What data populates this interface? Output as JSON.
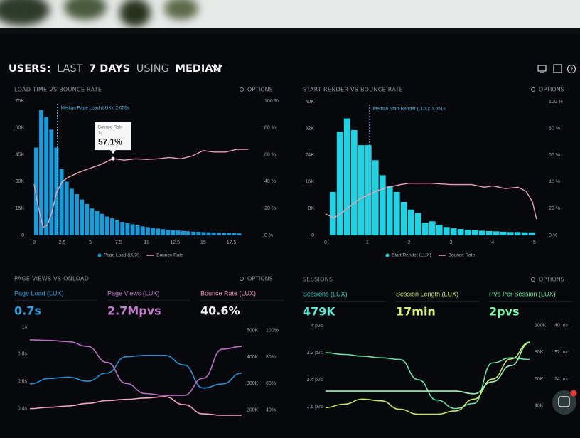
{
  "header": {
    "title": [
      {
        "text": "USERS:",
        "weight": "bold"
      },
      {
        "text": "LAST",
        "weight": "light"
      },
      {
        "text": "7 DAYS",
        "weight": "bold"
      },
      {
        "text": "USING",
        "weight": "light"
      },
      {
        "text": "MEDIAN",
        "weight": "bold"
      }
    ]
  },
  "load_chart": {
    "title": "LOAD TIME VS BOUNCE RATE",
    "options": "OPTIONS",
    "xlim": [
      -0.5,
      19.8
    ],
    "xticks": [
      0,
      2.5,
      5,
      7.5,
      10,
      12.5,
      15,
      17.5
    ],
    "ylim": [
      0,
      75
    ],
    "yticks": [
      0,
      {
        "value": 15,
        "label": "15K"
      },
      {
        "value": 30,
        "label": "30K"
      },
      {
        "value": 45,
        "label": "45K"
      },
      {
        "value": 60,
        "label": "60K"
      },
      {
        "value": 75,
        "label": "75K"
      }
    ],
    "y2lim": [
      0,
      100
    ],
    "y2ticks": [
      {
        "value": 0,
        "label": "0 %"
      },
      {
        "value": 20,
        "label": "20 %"
      },
      {
        "value": 40,
        "label": "40 %"
      },
      {
        "value": 60,
        "label": "60 %"
      },
      {
        "value": 80,
        "label": "80 %"
      },
      {
        "value": 100,
        "label": "100 %"
      }
    ],
    "bars": {
      "name": "Page Load (LUX)",
      "color": "#1b9ad8",
      "bins": [
        0,
        0.45,
        0.9,
        1.35,
        1.8,
        2.25,
        2.7,
        3.15,
        3.6,
        4.05,
        4.5,
        4.95,
        5.4,
        5.85,
        6.3,
        6.75,
        7.2,
        7.65,
        8.1,
        8.55,
        9,
        9.45,
        9.9,
        10.35,
        10.8,
        11.25,
        11.7,
        12.15,
        12.6,
        13.05,
        13.5,
        13.95,
        14.4,
        14.85,
        15.3,
        15.75,
        16.2,
        16.65,
        17.1,
        17.55,
        18,
        18.45
      ],
      "values": [
        49,
        70,
        66,
        59,
        49,
        37,
        30,
        26,
        23,
        20,
        17.5,
        15,
        13.5,
        12,
        10.5,
        9.5,
        8.5,
        7.5,
        6.8,
        6.2,
        5.6,
        5,
        4.6,
        4.2,
        3.8,
        3.5,
        3.2,
        2.9,
        2.7,
        2.5,
        2.3,
        2.1,
        2,
        1.8,
        1.7,
        1.6,
        1.5,
        1.4,
        1.3,
        1.2,
        1.1
      ]
    },
    "line": {
      "name": "Bounce Rate",
      "color": "#e8a2b4",
      "axis": "y2",
      "x": [
        0,
        0.4,
        0.8,
        1.2,
        1.6,
        2,
        2.5,
        3,
        4,
        5,
        6,
        7,
        8,
        9,
        10,
        11,
        12,
        13,
        14,
        15,
        16,
        17,
        18,
        19
      ],
      "values": [
        38,
        20,
        6,
        8,
        18,
        32,
        40,
        43,
        47,
        50,
        53,
        57.1,
        56,
        57,
        56.5,
        57,
        58,
        57,
        59,
        63,
        62,
        62,
        64,
        64
      ]
    },
    "median": {
      "x": 2.056,
      "label": "Median Page Load (LUX): 2.056s"
    },
    "tooltip": {
      "title": "Bounce Rate",
      "x_label": "7s",
      "value_label": "57.1%",
      "x": 7,
      "value": 57.1
    }
  },
  "render_chart": {
    "title": "START RENDER VS BOUNCE RATE",
    "options": "OPTIONS",
    "xlim": [
      -0.17,
      5.17
    ],
    "xticks": [
      0,
      1,
      2,
      3,
      4,
      5
    ],
    "ylim": [
      0,
      40
    ],
    "yticks": [
      0,
      {
        "value": 8,
        "label": "8K"
      },
      {
        "value": 16,
        "label": "16K"
      },
      {
        "value": 24,
        "label": "24K"
      },
      {
        "value": 32,
        "label": "32K"
      },
      {
        "value": 40,
        "label": "40K"
      }
    ],
    "y2lim": [
      0,
      100
    ],
    "y2ticks": [
      {
        "value": 0,
        "label": "0 %"
      },
      {
        "value": 20,
        "label": "20 %"
      },
      {
        "value": 40,
        "label": "40 %"
      },
      {
        "value": 60,
        "label": "60 %"
      },
      {
        "value": 80,
        "label": "80 %"
      },
      {
        "value": 100,
        "label": "100 %"
      }
    ],
    "bars": {
      "name": "Start Render (LUX)",
      "color": "#20d2e2",
      "bins": [
        0.1,
        0.27,
        0.44,
        0.61,
        0.78,
        0.95,
        1.12,
        1.29,
        1.46,
        1.63,
        1.8,
        1.97,
        2.14,
        2.31,
        2.48,
        2.65,
        2.82,
        2.99,
        3.16,
        3.33,
        3.5,
        3.67,
        3.84,
        4.01,
        4.18,
        4.35,
        4.52,
        4.69,
        4.86,
        5.03
      ],
      "values": [
        13,
        31,
        35,
        31.5,
        27,
        27,
        22.5,
        18,
        14.7,
        13,
        10,
        7.7,
        6.6,
        3.8,
        4.2,
        3.2,
        2.5,
        2.1,
        1.9,
        1.7,
        1.5,
        1.4,
        1.3,
        1.2,
        1.1,
        1,
        1,
        0.9,
        0.9
      ]
    },
    "line": {
      "name": "Bounce Rate",
      "color": "#e8a2b4",
      "axis": "y2",
      "x": [
        0,
        0.2,
        0.4,
        0.6,
        0.8,
        1,
        1.2,
        1.5,
        1.8,
        2,
        2.5,
        3,
        3.5,
        3.8,
        4,
        4.3,
        4.6,
        4.8,
        4.95,
        5.05
      ],
      "values": [
        16,
        13,
        17,
        22,
        27,
        30,
        33,
        36,
        38,
        39,
        39,
        38,
        38,
        36,
        37,
        35,
        36,
        33,
        25,
        12
      ]
    },
    "median": {
      "x": 1.051,
      "label": "Median Start Render (LUX): 1.051s"
    }
  },
  "views_panel": {
    "title": "PAGE VIEWS VS ONLOAD",
    "options": "OPTIONS",
    "metrics": [
      {
        "label": "Page Load (LUX)",
        "value": "0.7s",
        "color": "#2f9ee0",
        "value_color": "#2f9ee0"
      },
      {
        "label": "Page Views (LUX)",
        "value": "2.7Mpvs",
        "color": "#c47ccc",
        "value_color": "#c47ccc"
      },
      {
        "label": "Bounce Rate (LUX)",
        "value": "40.6%",
        "color": "#f29ab8",
        "value_color": "#f2f2f2"
      }
    ],
    "ylim": [
      0.35,
      1.05
    ],
    "yticks": [
      {
        "value": 1,
        "label": "1s"
      },
      {
        "value": 0.8,
        "label": "0.8s"
      },
      {
        "value": 0.6,
        "label": "0.6s"
      },
      {
        "value": 0.4,
        "label": "0.4s"
      }
    ],
    "y2lim": [
      180,
      540
    ],
    "y2ticks": [
      {
        "value": 500,
        "label": "500K"
      },
      {
        "value": 400,
        "label": "400K"
      },
      {
        "value": 300,
        "label": "300K"
      },
      {
        "value": 200,
        "label": "200K"
      }
    ],
    "y3lim": [
      36,
      108
    ],
    "y3ticks": [
      {
        "value": 100,
        "label": "100%"
      },
      {
        "value": 80,
        "label": "80%"
      },
      {
        "value": 60,
        "label": "60%"
      },
      {
        "value": 40,
        "label": "40%"
      }
    ],
    "series": [
      {
        "color": "#2a8fd0",
        "axis": "y",
        "values": [
          0.58,
          0.62,
          0.63,
          0.6,
          0.66,
          0.78,
          0.79,
          0.79,
          0.72,
          0.55,
          0.58,
          0.66
        ]
      },
      {
        "color": "#b86ec0",
        "axis": "y2",
        "values": [
          465,
          463,
          458,
          440,
          380,
          300,
          262,
          255,
          255,
          320,
          430,
          440
        ]
      },
      {
        "color": "#f3a6c2",
        "axis": "y3",
        "values": [
          41,
          42,
          43,
          45,
          47,
          48,
          49,
          50,
          44,
          37,
          36,
          36
        ]
      }
    ]
  },
  "sessions_panel": {
    "title": "SESSIONS",
    "options": "OPTIONS",
    "metrics": [
      {
        "label": "Sessions (LUX)",
        "value": "479K",
        "color": "#3fd6c6",
        "value_color": "#5fe3d2"
      },
      {
        "label": "Session Length (LUX)",
        "value": "17min",
        "color": "#c8e46c",
        "value_color": "#d9f07c"
      },
      {
        "label": "PVs Per Session (LUX)",
        "value": "2pvs",
        "color": "#6ef0a2",
        "value_color": "#7af5aa"
      }
    ],
    "ylim": [
      1.33,
      4.17
    ],
    "yticks": [
      {
        "value": 4,
        "label": "4 pvs"
      },
      {
        "value": 3.2,
        "label": "3.2 pvs"
      },
      {
        "value": 2.4,
        "label": "2.4 pvs"
      },
      {
        "value": 1.6,
        "label": "1.6 pvs"
      }
    ],
    "y2lim": [
      32.5,
      104
    ],
    "y2ticks": [
      {
        "value": 100,
        "label": "100K"
      },
      {
        "value": 80,
        "label": "80K"
      },
      {
        "value": 60,
        "label": "60K"
      },
      {
        "value": 40,
        "label": "40K"
      }
    ],
    "y3lim": [
      13,
      41.6
    ],
    "y3ticks": [
      {
        "value": 40,
        "label": "40 min"
      },
      {
        "value": 32,
        "label": "32 min"
      },
      {
        "value": 24,
        "label": "24 min"
      },
      {
        "value": 16,
        "label": "16 min"
      }
    ],
    "series": [
      {
        "color": "#6ee0a6",
        "axis": "y",
        "values": [
          3.2,
          3.15,
          3.1,
          3.05,
          3,
          2.4,
          1.8,
          1.55,
          1.7,
          2.9,
          3.05,
          3
        ]
      },
      {
        "color": "#c9e26a",
        "axis": "y3",
        "values": [
          15.5,
          16.5,
          18,
          17.5,
          15,
          13.5,
          13.5,
          14.5,
          18,
          24,
          30,
          35
        ]
      },
      {
        "color": "#9ef2b6",
        "axis": "y2",
        "values": [
          51,
          51,
          51,
          51,
          51,
          51,
          51,
          51,
          49,
          58,
          70,
          87
        ]
      }
    ]
  }
}
